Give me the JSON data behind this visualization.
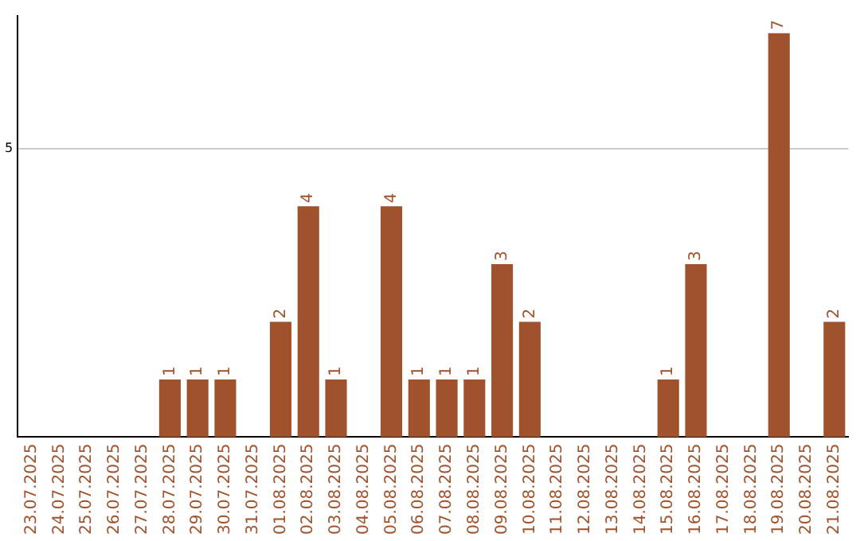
{
  "chart_data": {
    "type": "bar",
    "categories": [
      "23.07.2025",
      "24.07.2025",
      "25.07.2025",
      "26.07.2025",
      "27.07.2025",
      "28.07.2025",
      "29.07.2025",
      "30.07.2025",
      "31.07.2025",
      "01.08.2025",
      "02.08.2025",
      "03.08.2025",
      "04.08.2025",
      "05.08.2025",
      "06.08.2025",
      "07.08.2025",
      "08.08.2025",
      "09.08.2025",
      "10.08.2025",
      "11.08.2025",
      "12.08.2025",
      "13.08.2025",
      "14.08.2025",
      "15.08.2025",
      "16.08.2025",
      "17.08.2025",
      "18.08.2025",
      "19.08.2025",
      "20.08.2025",
      "21.08.2025"
    ],
    "values": [
      null,
      null,
      null,
      null,
      null,
      1,
      1,
      1,
      null,
      2,
      4,
      1,
      null,
      4,
      1,
      1,
      1,
      3,
      2,
      null,
      null,
      null,
      null,
      1,
      3,
      null,
      null,
      7,
      null,
      2
    ],
    "color": "#a0522d",
    "ylim": [
      0,
      7.3
    ],
    "yticks": [
      5
    ],
    "grid": "y",
    "data_labels": true
  }
}
